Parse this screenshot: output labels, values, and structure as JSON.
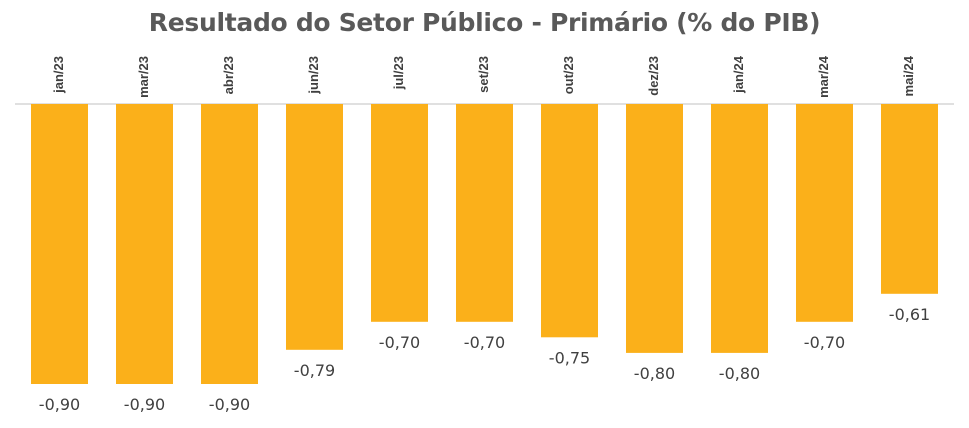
{
  "chart_data": {
    "type": "bar",
    "title": "Resultado do Setor Público - Primário (% do PIB)",
    "categories": [
      "jan/23",
      "mar/23",
      "abr/23",
      "jun/23",
      "jul/23",
      "set/23",
      "out/23",
      "dez/23",
      "jan/24",
      "mar/24",
      "mai/24"
    ],
    "values": [
      -0.9,
      -0.9,
      -0.9,
      -0.79,
      -0.7,
      -0.7,
      -0.75,
      -0.8,
      -0.8,
      -0.7,
      -0.61
    ],
    "value_labels": [
      "-0,90",
      "-0,90",
      "-0,90",
      "-0,79",
      "-0,70",
      "-0,70",
      "-0,75",
      "-0,80",
      "-0,80",
      "-0,70",
      "-0,61"
    ],
    "ylim": [
      -0.9,
      0
    ],
    "xlabel": "",
    "ylabel": "",
    "grid": false,
    "legend": "none",
    "x_axis_position": "top",
    "colors": {
      "bar": "#FBB01A",
      "axis": "#C0C0C0",
      "title": "#595959",
      "labels": "#404040"
    }
  }
}
